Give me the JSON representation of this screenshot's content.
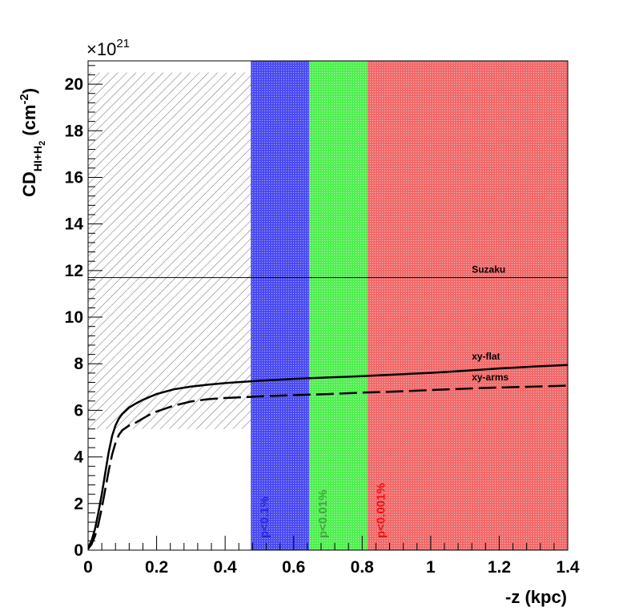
{
  "chart_data": {
    "type": "line",
    "xlabel": "-z (kpc)",
    "ylabel": {
      "main": "CD",
      "sub": "HI+H",
      "sub2": "2",
      "unit_open": " (cm",
      "unit_exp": "-2",
      "unit_close": ")"
    },
    "scale_exponent": {
      "prefix": "×10",
      "exp": "21"
    },
    "xlim": [
      0,
      1.4
    ],
    "ylim": [
      0,
      21
    ],
    "x_ticks": [
      0,
      0.2,
      0.4,
      0.6,
      0.8,
      1,
      1.2,
      1.4
    ],
    "x_tick_labels": [
      "0",
      "0.2",
      "0.4",
      "0.6",
      "0.8",
      "1",
      "1.2",
      "1.4"
    ],
    "y_ticks": [
      0,
      2,
      4,
      6,
      8,
      10,
      12,
      14,
      16,
      18,
      20
    ],
    "y_tick_labels": [
      "0",
      "2",
      "4",
      "6",
      "8",
      "10",
      "12",
      "14",
      "16",
      "18",
      "20"
    ],
    "hatched_region": {
      "x": [
        0,
        0.475
      ],
      "y": [
        5.2,
        20.5
      ]
    },
    "bands": [
      {
        "name": "blue-band",
        "x": [
          0.475,
          0.645
        ],
        "color": "#4b4bf0",
        "label": "p<0.1%",
        "label_color": "#2828e0"
      },
      {
        "name": "green-band",
        "x": [
          0.645,
          0.815
        ],
        "color": "#52ee52",
        "label": "p<0.01%",
        "label_color": "#3da83d"
      },
      {
        "name": "red-band",
        "x": [
          0.815,
          1.4
        ],
        "color": "#f06a6a",
        "label": "p<0.001%",
        "label_color": "#ee1111"
      }
    ],
    "reference_line": {
      "label": "Suzaku",
      "y": 11.7
    },
    "series": [
      {
        "name": "xy-flat",
        "style": "solid",
        "x": [
          0,
          0.01,
          0.02,
          0.03,
          0.04,
          0.05,
          0.06,
          0.07,
          0.08,
          0.09,
          0.1,
          0.12,
          0.14,
          0.16,
          0.18,
          0.2,
          0.25,
          0.3,
          0.35,
          0.4,
          0.45,
          0.5,
          0.6,
          0.7,
          0.8,
          0.9,
          1.0,
          1.1,
          1.2,
          1.3,
          1.4
        ],
        "values": [
          0.1,
          0.4,
          0.9,
          1.6,
          2.4,
          3.3,
          4.2,
          4.9,
          5.35,
          5.65,
          5.85,
          6.12,
          6.3,
          6.45,
          6.58,
          6.7,
          6.9,
          7.02,
          7.1,
          7.17,
          7.22,
          7.27,
          7.35,
          7.41,
          7.47,
          7.54,
          7.61,
          7.7,
          7.8,
          7.88,
          7.95
        ]
      },
      {
        "name": "xy-arms",
        "style": "dashed",
        "x": [
          0,
          0.01,
          0.02,
          0.03,
          0.04,
          0.05,
          0.06,
          0.07,
          0.08,
          0.09,
          0.1,
          0.12,
          0.14,
          0.16,
          0.18,
          0.2,
          0.25,
          0.3,
          0.35,
          0.4,
          0.45,
          0.5,
          0.6,
          0.7,
          0.8,
          0.9,
          1.0,
          1.1,
          1.2,
          1.3,
          1.4
        ],
        "values": [
          0.05,
          0.25,
          0.6,
          1.1,
          1.8,
          2.6,
          3.4,
          4.1,
          4.6,
          4.95,
          5.15,
          5.35,
          5.48,
          5.65,
          5.82,
          5.95,
          6.2,
          6.38,
          6.48,
          6.53,
          6.56,
          6.6,
          6.65,
          6.7,
          6.76,
          6.81,
          6.87,
          6.93,
          6.98,
          7.02,
          7.06
        ]
      }
    ]
  }
}
